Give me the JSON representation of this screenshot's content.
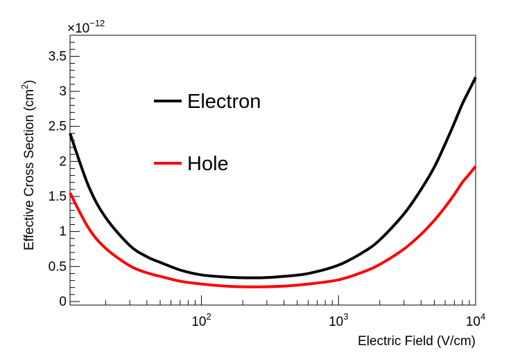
{
  "chart_data": {
    "type": "line",
    "title": "",
    "xlabel": "Electric Field (V/cm)",
    "ylabel_main": "Effective Cross Section (cm",
    "ylabel_sup": "2",
    "ylabel_close": ")",
    "y_multiplier_base": "×10",
    "y_multiplier_exp": "−12",
    "x_scale": "log",
    "xlim": [
      11,
      10000
    ],
    "ylim": [
      -0.05,
      3.8
    ],
    "grid": false,
    "legend_position": "upper-left-inside",
    "x_major_ticks": [
      {
        "base": "10",
        "exp": "2",
        "value": 100
      },
      {
        "base": "10",
        "exp": "3",
        "value": 1000
      },
      {
        "base": "10",
        "exp": "4",
        "value": 10000
      }
    ],
    "y_major_ticks": [
      {
        "label": "0",
        "value": 0
      },
      {
        "label": "0.5",
        "value": 0.5
      },
      {
        "label": "1",
        "value": 1
      },
      {
        "label": "1.5",
        "value": 1.5
      },
      {
        "label": "2",
        "value": 2
      },
      {
        "label": "2.5",
        "value": 2.5
      },
      {
        "label": "3",
        "value": 3
      },
      {
        "label": "3.5",
        "value": 3.5
      }
    ],
    "series": [
      {
        "name": "Electron",
        "color": "#000000",
        "x": [
          11,
          15,
          20,
          30,
          40,
          50,
          70,
          100,
          150,
          200,
          280,
          400,
          600,
          1000,
          1500,
          2000,
          3000,
          4000,
          5000,
          6000,
          7000,
          8000,
          9000,
          10000
        ],
        "y": [
          2.4,
          1.65,
          1.2,
          0.8,
          0.64,
          0.56,
          0.45,
          0.38,
          0.35,
          0.34,
          0.34,
          0.36,
          0.4,
          0.52,
          0.7,
          0.88,
          1.25,
          1.6,
          1.92,
          2.25,
          2.55,
          2.82,
          3.02,
          3.2
        ]
      },
      {
        "name": "Hole",
        "color": "#ff0000",
        "x": [
          11,
          15,
          20,
          30,
          40,
          50,
          70,
          100,
          150,
          200,
          280,
          400,
          600,
          1000,
          1500,
          2000,
          3000,
          4000,
          5000,
          6000,
          7000,
          8000,
          9000,
          10000
        ],
        "y": [
          1.55,
          1.05,
          0.76,
          0.51,
          0.41,
          0.36,
          0.29,
          0.25,
          0.22,
          0.21,
          0.21,
          0.22,
          0.25,
          0.31,
          0.42,
          0.53,
          0.75,
          0.96,
          1.16,
          1.35,
          1.53,
          1.7,
          1.82,
          1.93
        ]
      }
    ]
  }
}
